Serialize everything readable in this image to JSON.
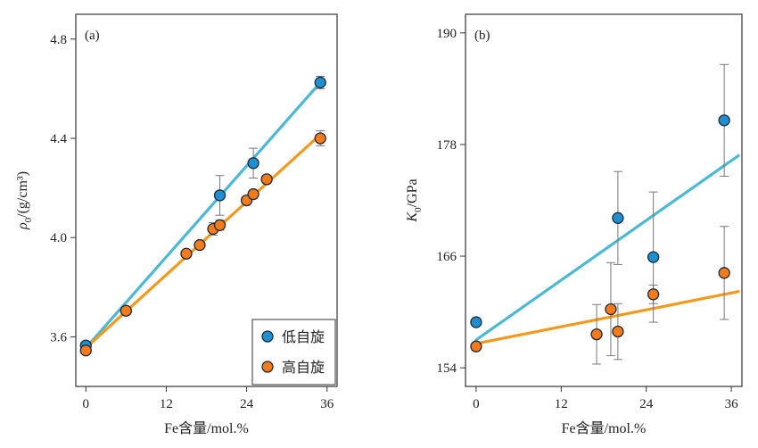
{
  "colors": {
    "low_spin": "#4bb8d4",
    "low_spin_marker": "#1f8fcf",
    "high_spin": "#f39a1e",
    "high_spin_marker": "#f47a1a",
    "marker_edge": "#1a2a3a",
    "error_bar": "#777777",
    "axis": "#333333"
  },
  "chart_data": [
    {
      "type": "scatter",
      "panel_label": "(a)",
      "xlabel": "Fe含量/mol.%",
      "ylabel_main": "ρ",
      "ylabel_sub": "0",
      "ylabel_rest": "/(g/cm³)",
      "xlim": [
        -1.5,
        37.5
      ],
      "ylim": [
        3.4,
        4.9
      ],
      "xticks": [
        0,
        12,
        24,
        36
      ],
      "yticks": [
        3.6,
        4.0,
        4.4,
        4.8
      ],
      "ytick_labels": [
        "3.6",
        "4.0",
        "4.4",
        "4.8"
      ],
      "xtick_labels": [
        "0",
        "12",
        "24",
        "36"
      ],
      "legend": {
        "position": "bottom-right",
        "entries": [
          "低自旋",
          "高自旋"
        ]
      },
      "series": [
        {
          "name": "低自旋",
          "points": [
            {
              "x": 0,
              "y": 3.565,
              "err": 0
            },
            {
              "x": 20,
              "y": 4.17,
              "err": 0.08
            },
            {
              "x": 25,
              "y": 4.3,
              "err": 0.06
            },
            {
              "x": 35,
              "y": 4.625,
              "err": 0.025
            }
          ],
          "fit": {
            "x": [
              0,
              35
            ],
            "y": [
              3.555,
              4.625
            ]
          }
        },
        {
          "name": "高自旋",
          "points": [
            {
              "x": 0,
              "y": 3.545,
              "err": 0
            },
            {
              "x": 6,
              "y": 3.705,
              "err": 0
            },
            {
              "x": 15,
              "y": 3.935,
              "err": 0
            },
            {
              "x": 17,
              "y": 3.97,
              "err": 0
            },
            {
              "x": 19,
              "y": 4.035,
              "err": 0.025
            },
            {
              "x": 20,
              "y": 4.05,
              "err": 0.02
            },
            {
              "x": 24,
              "y": 4.15,
              "err": 0
            },
            {
              "x": 25,
              "y": 4.175,
              "err": 0
            },
            {
              "x": 27,
              "y": 4.235,
              "err": 0
            },
            {
              "x": 35,
              "y": 4.4,
              "err": 0.03
            }
          ],
          "fit": {
            "x": [
              0,
              35
            ],
            "y": [
              3.555,
              4.415
            ]
          }
        }
      ]
    },
    {
      "type": "scatter",
      "panel_label": "(b)",
      "xlabel": "Fe含量/mol.%",
      "ylabel_main": "K",
      "ylabel_sub": "0",
      "ylabel_rest": "/GPa",
      "xlim": [
        -1.5,
        37.5
      ],
      "ylim": [
        152,
        192
      ],
      "xticks": [
        0,
        12,
        24,
        36
      ],
      "yticks": [
        154,
        166,
        178,
        190
      ],
      "ytick_labels": [
        "154",
        "166",
        "178",
        "190"
      ],
      "xtick_labels": [
        "0",
        "12",
        "24",
        "36"
      ],
      "series": [
        {
          "name": "低自旋",
          "points": [
            {
              "x": 0,
              "y": 158.9,
              "err": 0
            },
            {
              "x": 20,
              "y": 170.1,
              "err": 5
            },
            {
              "x": 25,
              "y": 165.9,
              "err": 7
            },
            {
              "x": 35,
              "y": 180.6,
              "err": 6
            }
          ],
          "fit": {
            "x": [
              0,
              37
            ],
            "y": [
              157.0,
              176.8
            ]
          }
        },
        {
          "name": "高自旋",
          "points": [
            {
              "x": 0,
              "y": 156.3,
              "err": 0
            },
            {
              "x": 17,
              "y": 157.6,
              "err": 3.2
            },
            {
              "x": 19,
              "y": 160.3,
              "err": 5
            },
            {
              "x": 20,
              "y": 157.9,
              "err": 3
            },
            {
              "x": 25,
              "y": 161.9,
              "err": 1
            },
            {
              "x": 35,
              "y": 164.2,
              "err": 5
            }
          ],
          "fit": {
            "x": [
              0,
              37
            ],
            "y": [
              156.6,
              162.2
            ]
          }
        }
      ]
    }
  ]
}
